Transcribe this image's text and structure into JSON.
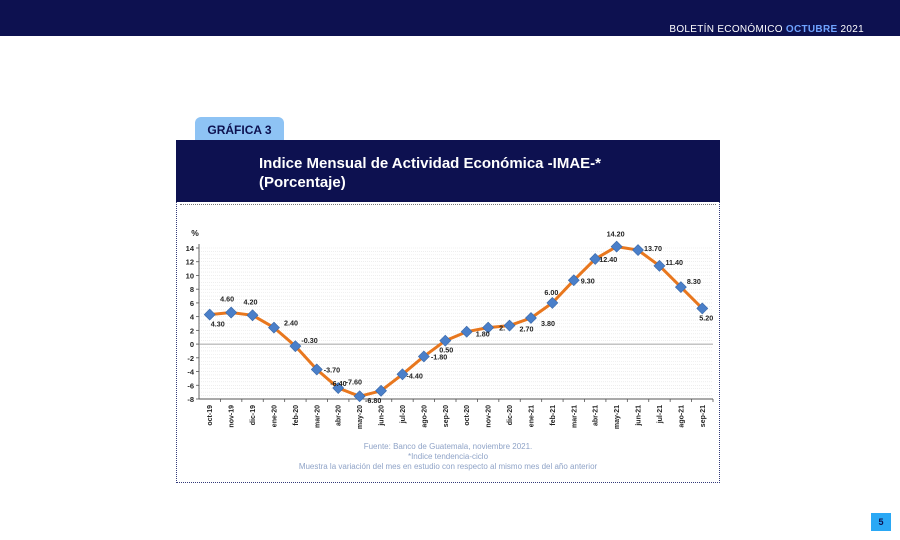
{
  "header": {
    "prefix": "BOLETÍN ECONÓMICO",
    "month": "OCTUBRE",
    "year": "2021"
  },
  "figure": {
    "tab_label": "GRÁFICA 3",
    "title_line1": "Indice Mensual de Actividad Económica -IMAE-*",
    "title_line2": "(Porcentaje)"
  },
  "notes": {
    "source": "Fuente: Banco de Guatemala, noviembre 2021.",
    "footnote": "*Indice tendencia-ciclo",
    "description": "Muestra la variación del mes en estudio con respecto al mismo mes del año anterior"
  },
  "page_number": "5",
  "colors": {
    "navy": "#0d1150",
    "tab": "#8ec3f4",
    "line": "#e8771e",
    "marker": "#4a7fc9",
    "page_badge": "#2aa8f5",
    "notes": "#8fa3c7"
  },
  "chart_data": {
    "type": "line",
    "ylabel": "%",
    "ylim": [
      -8,
      14
    ],
    "yticks": [
      -8,
      -6,
      -4,
      -2,
      0,
      2,
      4,
      6,
      8,
      10,
      12,
      14
    ],
    "grid": true,
    "categories": [
      "oct-19",
      "nov-19",
      "dic-19",
      "ene-20",
      "feb-20",
      "mar-20",
      "abr-20",
      "may-20",
      "jun-20",
      "jul-20",
      "ago-20",
      "sep-20",
      "oct-20",
      "nov-20",
      "dic-20",
      "ene-21",
      "feb-21",
      "mar-21",
      "abr-21",
      "may-21",
      "jun-21",
      "jul-21",
      "ago-21",
      "sep-21"
    ],
    "series": [
      {
        "values": [
          4.3,
          4.6,
          4.2,
          2.4,
          -0.3,
          -3.7,
          -6.4,
          -7.6,
          -6.8,
          -4.4,
          -1.8,
          0.5,
          1.8,
          2.4,
          2.7,
          3.8,
          6.0,
          9.3,
          12.4,
          14.2,
          13.7,
          11.4,
          8.3,
          5.2
        ],
        "labels": [
          "4.30",
          "4.60",
          "4.20",
          "2.40",
          "-0.30",
          "-3.70",
          "-6.40",
          "-7.60",
          "-6.80",
          "-4.40",
          "-1.80",
          "0.50",
          "1.80",
          "2.",
          "2.70",
          "3.80",
          "6.00",
          "9.30",
          "12.40",
          "14.20",
          "13.70",
          "11.40",
          "8.30",
          "5.20"
        ]
      }
    ]
  }
}
